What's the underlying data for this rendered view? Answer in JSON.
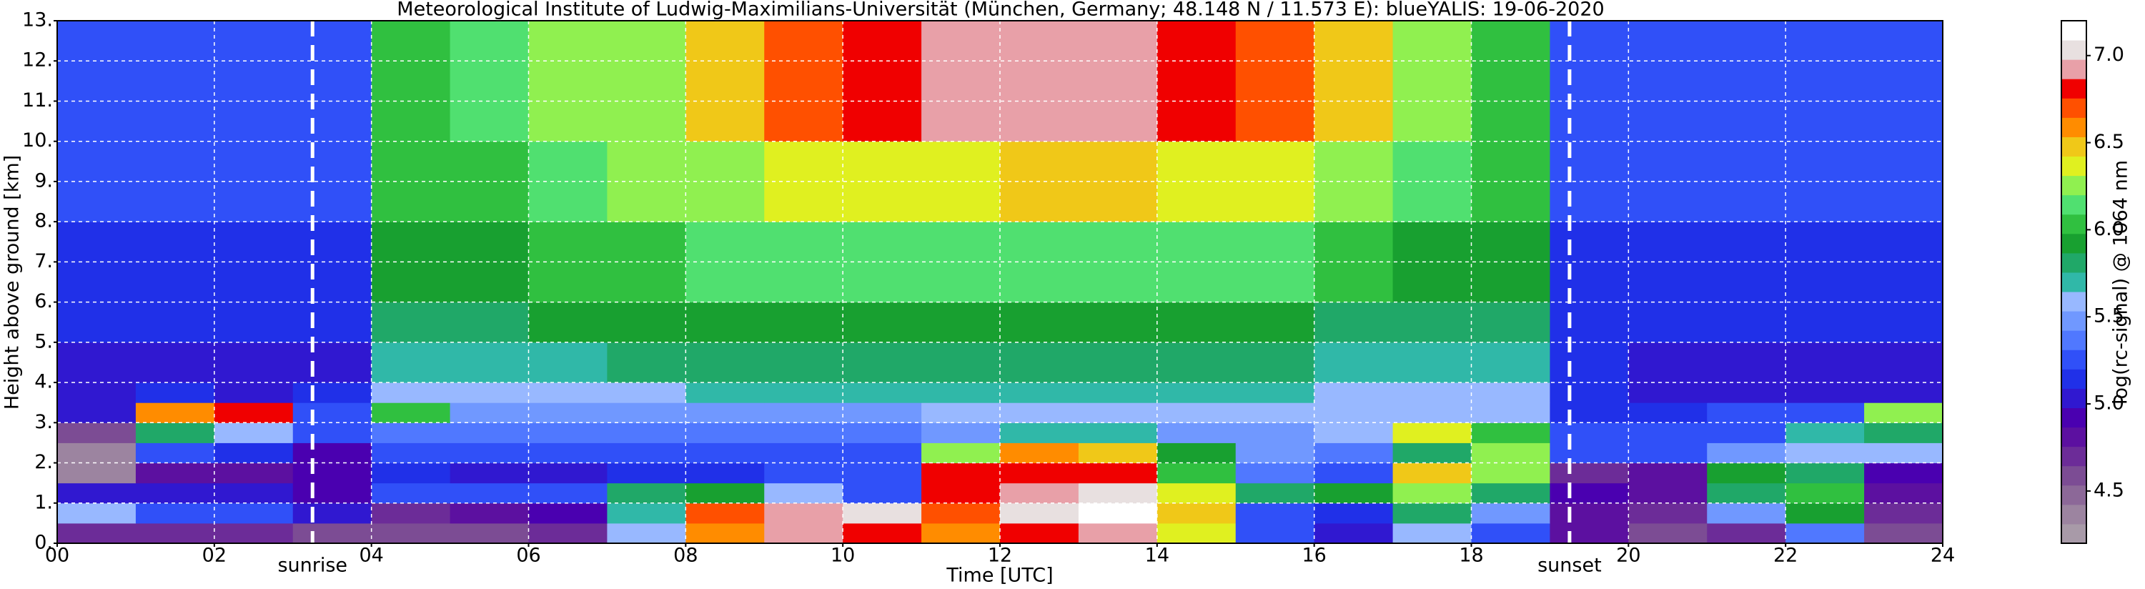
{
  "chart_data": {
    "type": "heatmap",
    "title": "Meteorological Institute of Ludwig-Maximilians-Universität (München, Germany; 48.148 N / 11.573 E):    blueYALIS: 19-06-2020",
    "x_label": "Time [UTC]",
    "y_label": "Height above ground [km]",
    "xlim": [
      0,
      24
    ],
    "ylim": [
      0,
      13
    ],
    "xticks": [
      {
        "value": 0,
        "label": "00"
      },
      {
        "value": 2,
        "label": "02"
      },
      {
        "value": 4,
        "label": "04"
      },
      {
        "value": 6,
        "label": "06"
      },
      {
        "value": 8,
        "label": "08"
      },
      10,
      12,
      14,
      16,
      18,
      20,
      22,
      24
    ],
    "yticks": [
      {
        "value": 0,
        "label": "0."
      },
      {
        "value": 1,
        "label": "1."
      },
      {
        "value": 2,
        "label": "2."
      },
      {
        "value": 3,
        "label": "3."
      },
      {
        "value": 4,
        "label": "4."
      },
      {
        "value": 5,
        "label": "5."
      },
      {
        "value": 6,
        "label": "6."
      },
      {
        "value": 7,
        "label": "7."
      },
      {
        "value": 8,
        "label": "8."
      },
      {
        "value": 9,
        "label": "9."
      },
      {
        "value": 10,
        "label": "10."
      },
      {
        "value": 11,
        "label": "11."
      },
      {
        "value": 12,
        "label": "12."
      },
      {
        "value": 13,
        "label": "13."
      }
    ],
    "grid": true,
    "annotations": [
      {
        "x": 3.25,
        "label": "sunrise"
      },
      {
        "x": 19.25,
        "label": "sunset"
      }
    ],
    "x_bins": [
      0,
      1,
      2,
      3,
      4,
      5,
      6,
      7,
      8,
      9,
      10,
      11,
      12,
      13,
      14,
      15,
      16,
      17,
      18,
      19,
      20,
      21,
      22,
      23,
      24
    ],
    "y_bins": [
      0,
      0.5,
      1,
      1.5,
      2,
      2.5,
      3,
      3.5,
      4,
      5,
      6,
      8,
      10,
      13
    ],
    "values": [
      [
        4.7,
        4.7,
        4.7,
        4.6,
        4.6,
        4.6,
        4.7,
        5.6,
        6.6,
        6.9,
        6.8,
        6.6,
        6.8,
        6.9,
        6.4,
        5.2,
        5.0,
        5.6,
        5.3,
        4.8,
        4.6,
        4.7,
        5.4,
        4.6
      ],
      [
        5.6,
        5.2,
        5.3,
        5.0,
        4.7,
        4.8,
        4.9,
        5.7,
        6.7,
        6.9,
        7.0,
        6.7,
        7.0,
        7.1,
        6.5,
        5.3,
        5.1,
        5.8,
        5.5,
        4.8,
        4.7,
        5.5,
        5.9,
        4.7
      ],
      [
        5.0,
        5.0,
        5.0,
        4.9,
        5.2,
        5.3,
        5.2,
        5.8,
        5.9,
        5.6,
        5.3,
        6.8,
        6.9,
        7.0,
        6.4,
        5.8,
        5.9,
        6.3,
        5.8,
        4.9,
        4.8,
        5.8,
        6.0,
        4.8
      ],
      [
        4.4,
        4.8,
        4.8,
        4.9,
        5.1,
        5.0,
        5.0,
        5.1,
        5.1,
        5.2,
        5.2,
        6.8,
        6.8,
        6.8,
        6.0,
        5.4,
        5.2,
        6.5,
        6.2,
        4.7,
        4.8,
        5.9,
        5.8,
        4.9
      ],
      [
        4.4,
        5.2,
        5.1,
        4.9,
        5.3,
        5.3,
        5.3,
        5.3,
        5.3,
        5.3,
        5.3,
        6.3,
        6.6,
        6.5,
        5.9,
        5.5,
        5.4,
        5.8,
        6.3,
        5.2,
        5.2,
        5.5,
        5.6,
        5.6
      ],
      [
        4.6,
        5.8,
        5.6,
        5.2,
        5.4,
        5.4,
        5.4,
        5.4,
        5.4,
        5.4,
        5.4,
        5.5,
        5.7,
        5.7,
        5.5,
        5.5,
        5.6,
        6.4,
        6.0,
        5.2,
        5.2,
        5.3,
        5.7,
        5.8
      ],
      [
        5.0,
        6.6,
        6.8,
        5.3,
        6.0,
        5.5,
        5.5,
        5.5,
        5.5,
        5.5,
        5.5,
        5.6,
        5.6,
        5.6,
        5.6,
        5.6,
        5.6,
        5.6,
        5.6,
        5.1,
        5.1,
        5.2,
        5.2,
        6.3
      ],
      [
        5.0,
        5.1,
        5.0,
        5.1,
        5.6,
        5.6,
        5.6,
        5.6,
        5.7,
        5.7,
        5.7,
        5.7,
        5.7,
        5.7,
        5.7,
        5.7,
        5.6,
        5.6,
        5.6,
        5.1,
        5.0,
        5.0,
        5.0,
        5.0
      ],
      [
        5.0,
        5.0,
        5.0,
        5.0,
        5.7,
        5.7,
        5.7,
        5.8,
        5.8,
        5.8,
        5.8,
        5.8,
        5.8,
        5.8,
        5.8,
        5.8,
        5.7,
        5.7,
        5.7,
        5.1,
        5.0,
        5.0,
        5.0,
        5.0
      ],
      [
        5.1,
        5.1,
        5.1,
        5.1,
        5.8,
        5.8,
        5.9,
        5.9,
        5.9,
        5.9,
        5.9,
        5.9,
        5.9,
        5.9,
        5.9,
        5.9,
        5.8,
        5.8,
        5.8,
        5.1,
        5.1,
        5.1,
        5.1,
        5.1
      ],
      [
        5.1,
        5.1,
        5.1,
        5.1,
        5.9,
        5.9,
        6.0,
        6.0,
        6.1,
        6.1,
        6.1,
        6.1,
        6.1,
        6.1,
        6.1,
        6.1,
        6.0,
        5.9,
        5.9,
        5.1,
        5.1,
        5.1,
        5.1,
        5.1
      ],
      [
        5.2,
        5.2,
        5.2,
        5.2,
        6.0,
        6.0,
        6.1,
        6.2,
        6.3,
        6.4,
        6.4,
        6.4,
        6.5,
        6.5,
        6.4,
        6.4,
        6.3,
        6.1,
        6.0,
        5.2,
        5.2,
        5.2,
        5.2,
        5.2
      ],
      [
        5.2,
        5.2,
        5.2,
        5.2,
        6.0,
        6.1,
        6.2,
        6.3,
        6.5,
        6.7,
        6.8,
        6.9,
        6.9,
        6.9,
        6.8,
        6.7,
        6.5,
        6.2,
        6.0,
        5.2,
        5.2,
        5.2,
        5.2,
        5.2
      ]
    ],
    "colormap": [
      "#a89aa8",
      "#9c84a0",
      "#8c6898",
      "#7c4c94",
      "#6c2c98",
      "#5c10a0",
      "#4a00b0",
      "#3018d0",
      "#2030e8",
      "#3050f8",
      "#5078ff",
      "#7098ff",
      "#98b8ff",
      "#30b8a8",
      "#20a868",
      "#18a030",
      "#30c040",
      "#50e070",
      "#90f050",
      "#e0f020",
      "#f0c818",
      "#ff8c00",
      "#ff5000",
      "#f00000",
      "#e8a0a8",
      "#e8e0e0",
      "#ffffff"
    ],
    "colorbar": {
      "label": "log(rc-signal) @ 1064 nm",
      "lim": [
        4.2,
        7.2
      ],
      "ticks": [
        4.5,
        {
          "value": 5,
          "label": "5.0"
        },
        5.5,
        {
          "value": 6,
          "label": "6.0"
        },
        6.5,
        {
          "value": 7,
          "label": "7.0"
        }
      ]
    }
  }
}
